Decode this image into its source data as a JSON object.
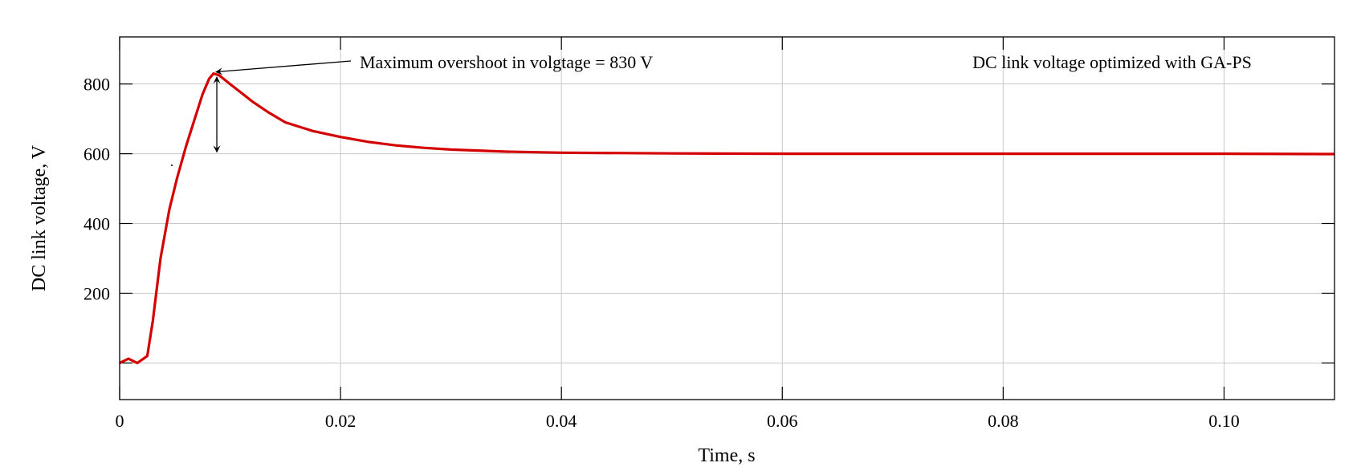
{
  "chart_data": {
    "type": "line",
    "title": "DC link voltage optimized with GA-PS",
    "xlabel": "Time, s",
    "ylabel": "DC link voltage, V",
    "xlim": [
      0,
      0.11
    ],
    "ylim": [
      -105,
      935
    ],
    "grid": true,
    "x_ticks": [
      0,
      0.02,
      0.04,
      0.06,
      0.08,
      0.1
    ],
    "x_tick_labels": [
      "0",
      "0.02",
      "0.04",
      "0.06",
      "0.08",
      "0.10"
    ],
    "y_ticks": [
      0,
      200,
      400,
      600,
      800
    ],
    "y_tick_labels": [
      "",
      "200",
      "400",
      "600",
      "800"
    ],
    "series": [
      {
        "color": "#d40000",
        "x": [
          0,
          0.0008,
          0.0016,
          0.0025,
          0.003,
          0.0037,
          0.0045,
          0.0052,
          0.006,
          0.0068,
          0.0075,
          0.0081,
          0.0085,
          0.009,
          0.01,
          0.011,
          0.012,
          0.0135,
          0.015,
          0.0175,
          0.02,
          0.0225,
          0.025,
          0.0275,
          0.03,
          0.035,
          0.04,
          0.05,
          0.06,
          0.07,
          0.08,
          0.09,
          0.1,
          0.11
        ],
        "y": [
          0,
          12,
          0,
          20,
          120,
          300,
          440,
          530,
          620,
          700,
          770,
          815,
          830,
          825,
          800,
          775,
          750,
          718,
          690,
          665,
          648,
          634,
          624,
          617,
          612,
          606,
          603,
          601,
          600,
          600,
          600,
          600,
          600,
          599
        ]
      }
    ],
    "annotations": [
      {
        "text": "Maximum overshoot in volgtage = 830 V",
        "points_to": [
          0.0085,
          830
        ]
      },
      {
        "type": "double-arrow",
        "from": [
          0.0088,
          820
        ],
        "to": [
          0.0088,
          605
        ]
      }
    ]
  }
}
